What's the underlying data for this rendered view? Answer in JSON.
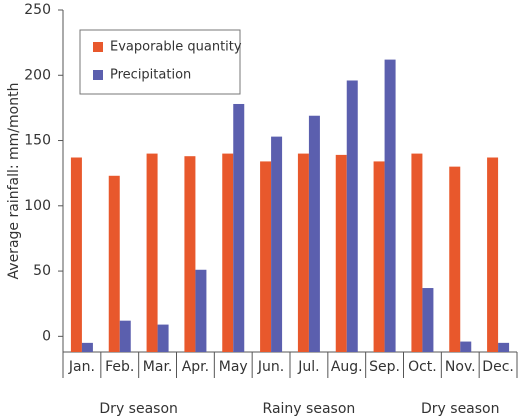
{
  "chart_data": {
    "type": "bar",
    "y_label": "Average rainfall: mm/month",
    "categories": [
      "Jan.",
      "Feb.",
      "Mar.",
      "Apr.",
      "May",
      "Jun.",
      "Jul.",
      "Aug.",
      "Sep.",
      "Oct.",
      "Nov.",
      "Dec."
    ],
    "series": [
      {
        "name": "Evaporable quantity",
        "color": "#e8582c",
        "values": [
          137,
          123,
          140,
          138,
          140,
          134,
          140,
          139,
          134,
          140,
          130,
          137
        ]
      },
      {
        "name": "Precipitation",
        "color": "#5b5fae",
        "values": [
          -5,
          12,
          9,
          51,
          178,
          153,
          169,
          196,
          212,
          37,
          -4,
          -5
        ]
      }
    ],
    "season_groups": [
      {
        "label": "Dry season",
        "categories": [
          "Jan.",
          "Feb.",
          "Mar.",
          "Apr."
        ]
      },
      {
        "label": "Rainy season",
        "categories": [
          "May",
          "Jun.",
          "Jul.",
          "Aug.",
          "Sep."
        ]
      },
      {
        "label": "Dry season",
        "categories": [
          "Oct.",
          "Nov.",
          "Dec."
        ]
      }
    ],
    "ylim": [
      -12,
      250
    ],
    "yticks": [
      0,
      50,
      100,
      150,
      200,
      250
    ],
    "grid": false,
    "legend": "upper left"
  }
}
